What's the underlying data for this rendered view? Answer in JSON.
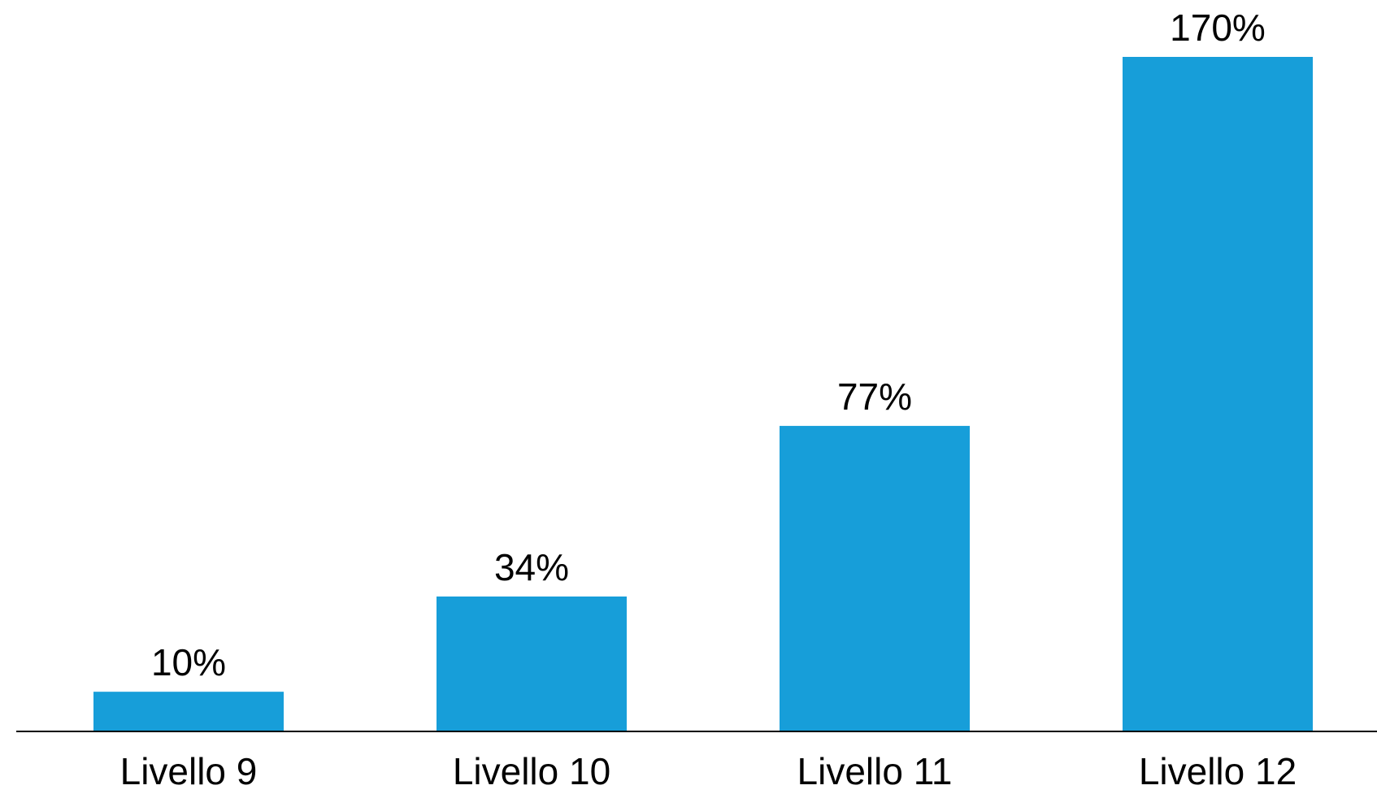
{
  "chart_data": {
    "type": "bar",
    "categories": [
      "Livello 9",
      "Livello 10",
      "Livello 11",
      "Livello 12"
    ],
    "values": [
      10,
      34,
      77,
      170
    ],
    "data_labels": [
      "10%",
      "34%",
      "77%",
      "170%"
    ],
    "title": "",
    "xlabel": "",
    "ylabel": "",
    "ylim": [
      0,
      183
    ],
    "grid": false,
    "legend": "none",
    "bar_color": "#179ed9",
    "axis_color": "#000000"
  }
}
